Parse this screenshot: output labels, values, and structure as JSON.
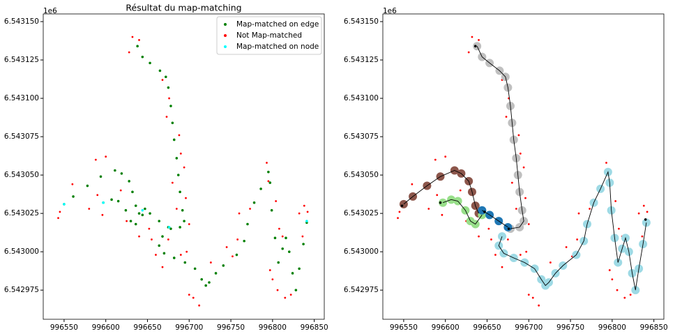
{
  "chart_data": [
    {
      "type": "scatter",
      "title": "Résultat du map-matching",
      "offset_label": "1e6",
      "xlim": [
        996525,
        996862
      ],
      "ylim": [
        6542956,
        6543155
      ],
      "xticks": [
        996550,
        996600,
        996650,
        996700,
        996750,
        996800,
        996850
      ],
      "yticks": [
        {
          "value": 6542975,
          "label": "6.542975"
        },
        {
          "value": 6543000,
          "label": "6.543000"
        },
        {
          "value": 6543025,
          "label": "6.543025"
        },
        {
          "value": 6543050,
          "label": "6.543050"
        },
        {
          "value": 6543075,
          "label": "6.543075"
        },
        {
          "value": 6543100,
          "label": "6.543100"
        },
        {
          "value": 6543125,
          "label": "6.543125"
        },
        {
          "value": 6543150,
          "label": "6.543150"
        }
      ],
      "legend": "upper right",
      "series": [
        {
          "name": "Map-matched on edge",
          "color": "#008000",
          "mode": "markers",
          "marker": "point",
          "x": [
            996638,
            996644,
            996653,
            996665,
            996672,
            996675,
            996678,
            996680,
            996682,
            996685,
            996687,
            996689,
            996692,
            996694,
            996689,
            996678,
            996668,
            996664,
            996670,
            996682,
            996695,
            996707,
            996715,
            996720,
            996724,
            996732,
            996741,
            996757,
            996766,
            996770,
            996778,
            996786,
            996795,
            996797,
            996799,
            996803,
            996807,
            996812,
            996816,
            996820,
            996824,
            996828,
            996832,
            996837,
            996841,
            996550,
            996561,
            996578,
            996594,
            996611,
            996619,
            996628,
            996632,
            996636,
            996640,
            996647,
            996653,
            996664,
            996675,
            996597,
            996607,
            996615,
            996624,
            996630,
            996636,
            996644
          ],
          "values": [
            6543134,
            6543127,
            6543123,
            6543118,
            6543114,
            6543107,
            6543095,
            6543084,
            6543073,
            6543061,
            6543050,
            6543039,
            6543027,
            6543020,
            6543016,
            6543015,
            6543010,
            6543004,
            6542999,
            6542996,
            6542993,
            6542989,
            6542982,
            6542978,
            6542980,
            6542986,
            6542991,
            6542998,
            6543007,
            6543018,
            6543032,
            6543041,
            6543052,
            6543045,
            6543027,
            6543009,
            6542993,
            6543002,
            6543009,
            6543000,
            6542986,
            6542975,
            6542989,
            6543005,
            6543019,
            6543031,
            6543036,
            6543043,
            6543049,
            6543053,
            6543051,
            6543046,
            6543039,
            6543030,
            6543025,
            6543028,
            6543025,
            6543020,
            6543016,
            6543032,
            6543034,
            6543033,
            6543027,
            6543020,
            6543018,
            6543024
          ]
        },
        {
          "name": "Not Map-matched",
          "color": "#ff0000",
          "mode": "markers",
          "marker": "speck",
          "x": [
            996632,
            996640,
            996628,
            996668,
            996676,
            996673,
            996688,
            996690,
            996694,
            996680,
            996696,
            996685,
            996700,
            996545,
            996543,
            996560,
            996588,
            996600,
            996590,
            996596,
            996580,
            996618,
            996625,
            996640,
            996655,
            996652,
            996668,
            996690,
            996697,
            996705,
            996712,
            996700,
            996726,
            996745,
            996752,
            996758,
            996760,
            996773,
            996793,
            996795,
            996804,
            996808,
            996812,
            996797,
            996800,
            996806,
            996815,
            996822,
            996836,
            996838,
            996842,
            996832,
            996675,
            996660
          ],
          "values": [
            6543140,
            6543138,
            6543130,
            6543112,
            6543100,
            6543088,
            6543076,
            6543064,
            6543055,
            6543045,
            6543035,
            6543028,
            6543018,
            6543026,
            6543022,
            6543044,
            6543060,
            6543062,
            6543037,
            6543024,
            6543028,
            6543040,
            6543020,
            6543010,
            6543008,
            6543015,
            6542990,
            6542998,
            6543000,
            6542970,
            6542965,
            6542972,
            6542993,
            6543003,
            6542997,
            6543008,
            6543025,
            6543028,
            6543058,
            6543046,
            6543033,
            6543015,
            6543010,
            6542988,
            6542982,
            6542975,
            6542970,
            6542972,
            6543010,
            6543030,
            6543026,
            6543025,
            6543008,
            6542998
          ]
        },
        {
          "name": "Map-matched on node",
          "color": "#00ffff",
          "mode": "markers",
          "marker": "point",
          "x": [
            996550,
            996597,
            996644,
            996676,
            996841
          ],
          "values": [
            6543031,
            6543032,
            6543027,
            6543016,
            6543020
          ]
        }
      ]
    },
    {
      "type": "scatter",
      "offset_label": "1e6",
      "xlim": [
        996525,
        996862
      ],
      "ylim": [
        6542956,
        6543155
      ],
      "xticks": [
        996550,
        996600,
        996650,
        996700,
        996750,
        996800,
        996850
      ],
      "yticks": [
        {
          "value": 6542975,
          "label": "6.542975"
        },
        {
          "value": 6543000,
          "label": "6.543000"
        },
        {
          "value": 6543025,
          "label": "6.543025"
        },
        {
          "value": 6543050,
          "label": "6.543050"
        },
        {
          "value": 6543075,
          "label": "6.543075"
        },
        {
          "value": 6543100,
          "label": "6.543100"
        },
        {
          "value": 6543125,
          "label": "6.543125"
        },
        {
          "value": 6543150,
          "label": "6.543150"
        }
      ],
      "series": [
        {
          "color": "#ff0000",
          "mode": "markers",
          "marker": "speck",
          "x": [
            996632,
            996640,
            996628,
            996668,
            996676,
            996673,
            996688,
            996690,
            996694,
            996680,
            996696,
            996685,
            996700,
            996545,
            996543,
            996560,
            996588,
            996600,
            996590,
            996596,
            996580,
            996618,
            996625,
            996640,
            996655,
            996652,
            996668,
            996690,
            996697,
            996705,
            996712,
            996700,
            996726,
            996745,
            996752,
            996758,
            996760,
            996773,
            996793,
            996795,
            996804,
            996808,
            996812,
            996797,
            996800,
            996806,
            996815,
            996822,
            996836,
            996838,
            996842,
            996832,
            996675,
            996660
          ],
          "values": [
            6543140,
            6543138,
            6543130,
            6543112,
            6543100,
            6543088,
            6543076,
            6543064,
            6543055,
            6543045,
            6543035,
            6543028,
            6543018,
            6543026,
            6543022,
            6543044,
            6543060,
            6543062,
            6543037,
            6543024,
            6543028,
            6543040,
            6543020,
            6543010,
            6543008,
            6543015,
            6542990,
            6542998,
            6543000,
            6542970,
            6542965,
            6542972,
            6542993,
            6543003,
            6542997,
            6543008,
            6543025,
            6543028,
            6543058,
            6543046,
            6543033,
            6543015,
            6543010,
            6542988,
            6542982,
            6542975,
            6542970,
            6542972,
            6543010,
            6543030,
            6543026,
            6543025,
            6543008,
            6542998
          ]
        },
        {
          "color": "#c0c0c0",
          "mode": "markers",
          "marker": "blob",
          "x": [
            996638,
            996644,
            996653,
            996665,
            996672,
            996675,
            996678,
            996680,
            996682,
            996685,
            996687,
            996689,
            996692,
            996694,
            996689,
            996678
          ],
          "values": [
            6543134,
            6543127,
            6543123,
            6543118,
            6543114,
            6543107,
            6543095,
            6543084,
            6543073,
            6543061,
            6543050,
            6543039,
            6543027,
            6543020,
            6543016,
            6543015
          ]
        },
        {
          "color": "#8c564b",
          "mode": "markers",
          "marker": "blob",
          "x": [
            996550,
            996561,
            996578,
            996594,
            996611,
            996619,
            996628,
            996632,
            996636,
            996640
          ],
          "values": [
            6543031,
            6543036,
            6543043,
            6543049,
            6543053,
            6543051,
            6543046,
            6543039,
            6543030,
            6543025
          ]
        },
        {
          "color": "#98df8a",
          "mode": "markers",
          "marker": "blob",
          "x": [
            996597,
            996607,
            996615,
            996624,
            996630,
            996636,
            996644
          ],
          "values": [
            6543032,
            6543034,
            6543033,
            6543027,
            6543020,
            6543018,
            6543024
          ]
        },
        {
          "color": "#1f77b4",
          "mode": "markers",
          "marker": "blob",
          "x": [
            996644,
            996653,
            996664,
            996675
          ],
          "values": [
            6543027,
            6543024,
            6543020,
            6543016
          ]
        },
        {
          "color": "#9edae5",
          "mode": "markers",
          "marker": "blob",
          "x": [
            996668,
            996664,
            996670,
            996682,
            996695,
            996707,
            996715,
            996720,
            996724,
            996732,
            996741,
            996757,
            996766,
            996770,
            996778,
            996786,
            996795,
            996797,
            996799,
            996803,
            996807,
            996812,
            996816,
            996820,
            996824,
            996828,
            996832,
            996837,
            996841
          ],
          "values": [
            6543010,
            6543004,
            6542999,
            6542996,
            6542993,
            6542989,
            6542982,
            6542978,
            6542980,
            6542986,
            6542991,
            6542998,
            6543007,
            6543018,
            6543032,
            6543041,
            6543052,
            6543045,
            6543027,
            6543009,
            6542993,
            6543002,
            6543009,
            6543000,
            6542986,
            6542975,
            6542989,
            6543005,
            6543019
          ]
        },
        {
          "color": "#000000",
          "mode": "line",
          "x": [
            996638,
            996644,
            996653,
            996665,
            996672,
            996675,
            996678,
            996680,
            996682,
            996685,
            996687,
            996689,
            996692,
            996694,
            996689,
            996678,
            null,
            996550,
            996561,
            996578,
            996594,
            996611,
            996619,
            996628,
            996632,
            996636,
            996640,
            null,
            996597,
            996607,
            996615,
            996624,
            996630,
            996636,
            996644,
            null,
            996644,
            996653,
            996664,
            996675,
            null,
            996668,
            996664,
            996670,
            996682,
            996695,
            996707,
            996715,
            996720,
            996724,
            996732,
            996741,
            996757,
            996766,
            996770,
            996778,
            996786,
            996795,
            996797,
            996799,
            996803,
            996807,
            996812,
            996816,
            996820,
            996824,
            996828,
            996832,
            996837,
            996841
          ],
          "values": [
            6543134,
            6543127,
            6543123,
            6543118,
            6543114,
            6543107,
            6543095,
            6543084,
            6543073,
            6543061,
            6543050,
            6543039,
            6543027,
            6543020,
            6543016,
            6543015,
            null,
            6543031,
            6543036,
            6543043,
            6543049,
            6543053,
            6543051,
            6543046,
            6543039,
            6543030,
            6543025,
            null,
            6543032,
            6543034,
            6543033,
            6543027,
            6543020,
            6543018,
            6543024,
            null,
            6543027,
            6543024,
            6543020,
            6543016,
            null,
            6543010,
            6543004,
            6542999,
            6542996,
            6542993,
            6542989,
            6542982,
            6542978,
            6542980,
            6542986,
            6542991,
            6542998,
            6543007,
            6543018,
            6543032,
            6543041,
            6543052,
            6543045,
            6543027,
            6543009,
            6542993,
            6543002,
            6543009,
            6543000,
            6542986,
            6542975,
            6542989,
            6543005,
            6543019
          ]
        },
        {
          "color": "#000000",
          "mode": "markers",
          "marker": "point",
          "x": [
            996636,
            996548,
            996594,
            996647,
            996676,
            996840
          ],
          "values": [
            6543134,
            6543030,
            6543032,
            6543026,
            6543015,
            6543021
          ]
        }
      ]
    }
  ]
}
